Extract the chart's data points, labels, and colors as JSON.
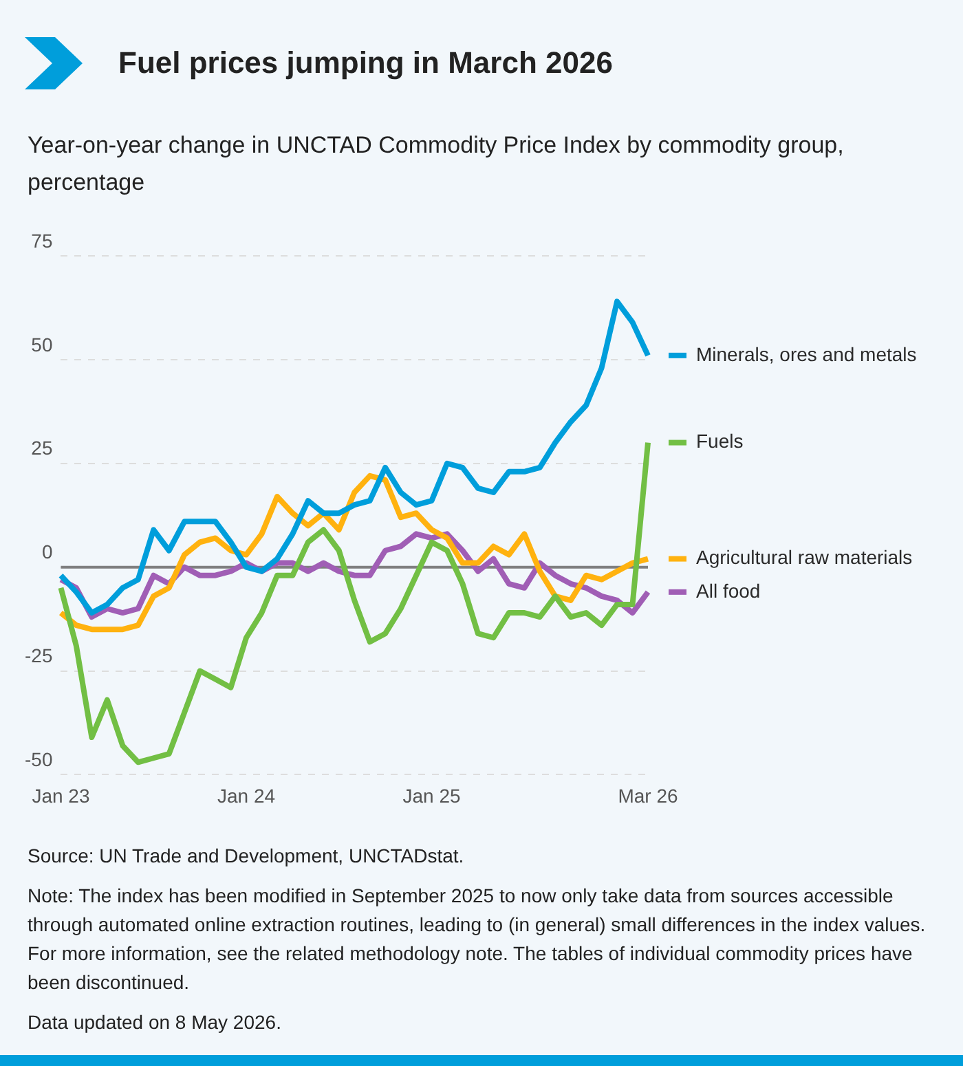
{
  "chart_data": {
    "type": "line",
    "title": "Fuel prices jumping in March 2026",
    "subtitle": "Year-on-year change in UNCTAD Commodity Price Index by commodity group, percentage",
    "categories": [
      "Jan 23",
      null,
      null,
      null,
      null,
      null,
      null,
      null,
      null,
      null,
      null,
      null,
      "Jan 24",
      null,
      null,
      null,
      null,
      null,
      null,
      null,
      null,
      null,
      null,
      null,
      "Jan 25",
      null,
      null,
      null,
      null,
      null,
      null,
      null,
      null,
      null,
      null,
      null,
      null,
      null,
      "Mar 26"
    ],
    "series": [
      {
        "name": "Minerals, ores and metals",
        "color": "#009edb",
        "values": [
          -2,
          -6,
          -11,
          -9,
          -5,
          -3,
          9,
          4,
          11,
          11,
          11,
          6,
          0,
          -1,
          2,
          8,
          16,
          13,
          13,
          15,
          16,
          24,
          18,
          15,
          16,
          25,
          24,
          19,
          18,
          23,
          23,
          24,
          30,
          35,
          39,
          48,
          64,
          59,
          51
        ]
      },
      {
        "name": "Fuels",
        "color": "#72bf44",
        "values": [
          -5,
          -19,
          -41,
          -32,
          -43,
          -47,
          -46,
          -45,
          -35,
          -25,
          -27,
          -29,
          -17,
          -11,
          -2,
          -2,
          6,
          9,
          4,
          -8,
          -18,
          -16,
          -10,
          -2,
          6,
          4,
          -4,
          -16,
          -17,
          -11,
          -11,
          -12,
          -7,
          -12,
          -11,
          -14,
          -9,
          -9,
          30
        ]
      },
      {
        "name": "Agricultural raw materials",
        "color": "#ffb20f",
        "values": [
          -11,
          -14,
          -15,
          -15,
          -15,
          -14,
          -7,
          -5,
          3,
          6,
          7,
          4,
          3,
          8,
          17,
          13,
          10,
          13,
          9,
          18,
          22,
          21,
          12,
          13,
          9,
          7,
          1,
          1,
          5,
          3,
          8,
          -1,
          -7,
          -8,
          -2,
          -3,
          -1,
          1,
          2
        ]
      },
      {
        "name": "All food",
        "color": "#a05eb5",
        "values": [
          -3,
          -5,
          -12,
          -10,
          -11,
          -10,
          -2,
          -4,
          0,
          -2,
          -2,
          -1,
          1,
          -1,
          1,
          1,
          -1,
          1,
          -1,
          -2,
          -2,
          4,
          5,
          8,
          7,
          8,
          4,
          -1,
          2,
          -4,
          -5,
          1,
          -2,
          -4,
          -5,
          -7,
          -8,
          -11,
          -6
        ]
      }
    ],
    "ylim": [
      -50,
      75
    ],
    "yticks": [
      -50,
      -25,
      0,
      25,
      50,
      75
    ],
    "grid": "y",
    "legend": "right",
    "line_style": "solid",
    "marker": "none",
    "ref_lines": [
      {
        "axis": "y",
        "value": 0,
        "color": "#808080"
      }
    ],
    "annotations": [
      "Source: UN Trade and Development, UNCTADstat.",
      "Note: The index has been modified in September 2025 to now only take data from sources accessible through automated online extraction routines, leading to (in general) small differences in the index values. For more information, see the related methodology note. The tables of individual commodity prices have been discontinued.",
      "Data updated on 8 May 2026."
    ]
  }
}
